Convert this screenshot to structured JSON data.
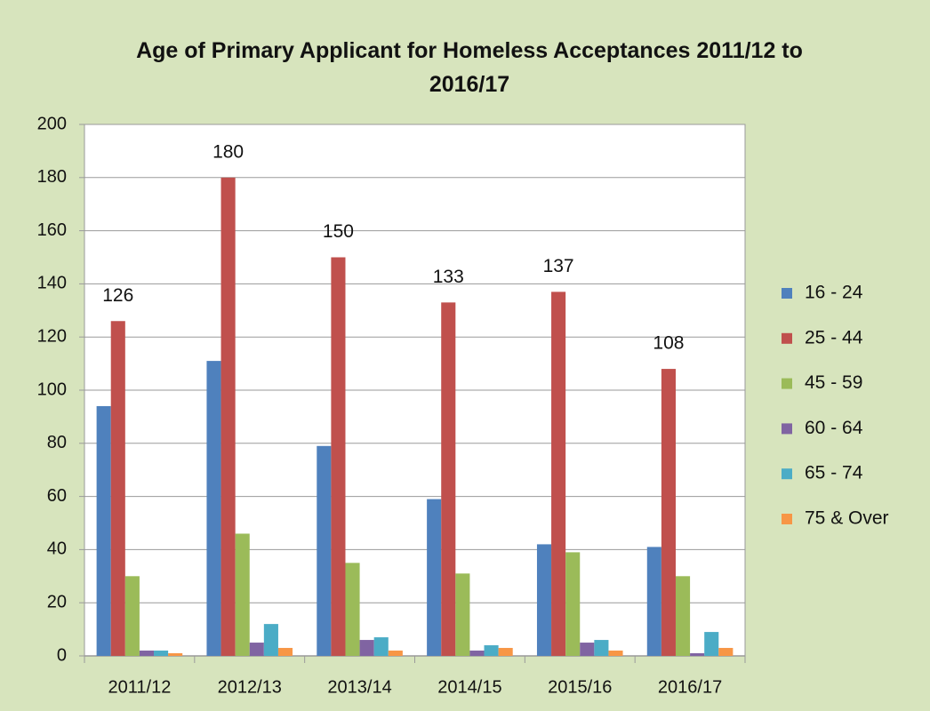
{
  "chart_data": {
    "type": "bar",
    "title": "Age of Primary Applicant for Homeless Acceptances 2011/12 to 2016/17",
    "categories": [
      "2011/12",
      "2012/13",
      "2013/14",
      "2014/15",
      "2015/16",
      "2016/17"
    ],
    "series": [
      {
        "name": "16 - 24",
        "color": "#4f81bd",
        "values": [
          94,
          111,
          79,
          59,
          42,
          41
        ]
      },
      {
        "name": "25 - 44",
        "color": "#c0504d",
        "values": [
          126,
          180,
          150,
          133,
          137,
          108
        ],
        "data_labels": true
      },
      {
        "name": "45 - 59",
        "color": "#9bbb59",
        "values": [
          30,
          46,
          35,
          31,
          39,
          30
        ]
      },
      {
        "name": "60 - 64",
        "color": "#8064a2",
        "values": [
          2,
          5,
          6,
          2,
          5,
          1
        ]
      },
      {
        "name": "65 - 74",
        "color": "#4bacc6",
        "values": [
          2,
          12,
          7,
          4,
          6,
          9
        ]
      },
      {
        "name": "75 & Over",
        "color": "#f79646",
        "values": [
          1,
          3,
          2,
          3,
          2,
          3
        ]
      }
    ],
    "ylim": [
      0,
      200
    ],
    "yticks": [
      0,
      20,
      40,
      60,
      80,
      100,
      120,
      140,
      160,
      180,
      200
    ],
    "grid": true,
    "legend": "right"
  }
}
